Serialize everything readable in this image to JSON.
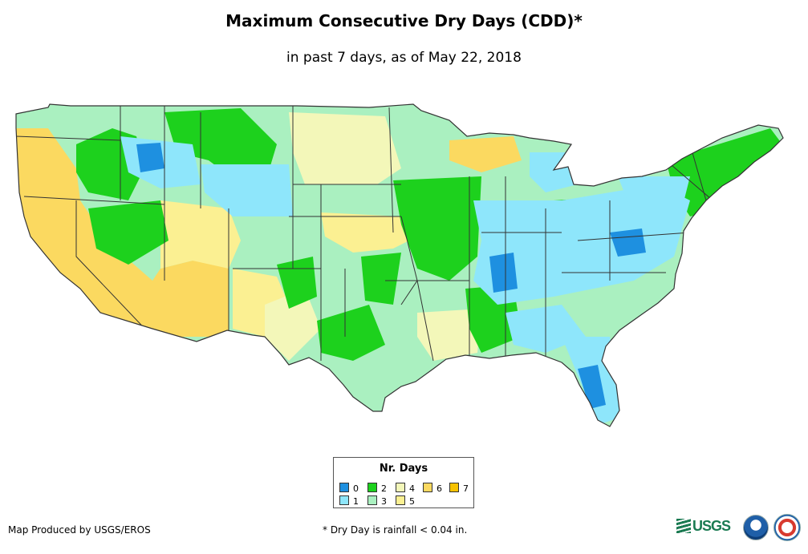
{
  "title": "Maximum Consecutive Dry Days (CDD)*",
  "subtitle": "in past 7 days, as of May 22, 2018",
  "legend": {
    "title": "Nr. Days",
    "items": [
      {
        "label": "0",
        "color": "#1e90e0"
      },
      {
        "label": "1",
        "color": "#8ee6fb"
      },
      {
        "label": "2",
        "color": "#1dd11d"
      },
      {
        "label": "3",
        "color": "#aaf0c0"
      },
      {
        "label": "4",
        "color": "#f3f7b9"
      },
      {
        "label": "5",
        "color": "#fbf092"
      },
      {
        "label": "6",
        "color": "#fbd960"
      },
      {
        "label": "7",
        "color": "#f7c200"
      }
    ]
  },
  "credit": "Map Produced by USGS/EROS",
  "footnote": "* Dry Day is rainfall < 0.04 in.",
  "logos": {
    "usgs": "USGS",
    "usgs_icon": "usgs-logo-icon",
    "noaa_icon": "noaa-logo-icon",
    "nws_icon": "nws-logo-icon"
  },
  "map": {
    "label": "Contiguous United States - CDD map",
    "colors": {
      "background": "#aaf0c0",
      "state_border": "#333333"
    }
  }
}
